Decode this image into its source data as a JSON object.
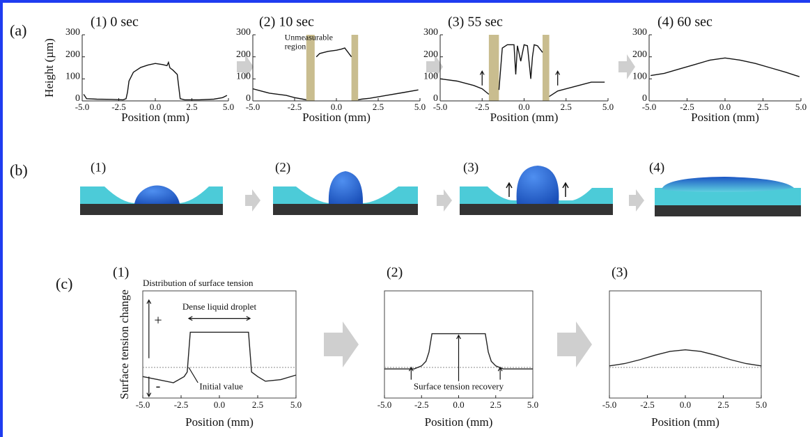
{
  "panel_labels": [
    "(a)",
    "(b)",
    "(c)"
  ],
  "diagram_b": {
    "labels": [
      "(1)",
      "(2)",
      "(3)",
      "(4)"
    ]
  },
  "chart_data": [
    {
      "type": "line",
      "title": "(1) 0 sec",
      "x_label": "Position (mm)",
      "y_label": "Height (µm)",
      "xlim": [
        -5,
        5
      ],
      "ylim": [
        0,
        300
      ],
      "xticks": [
        {
          "value": -5,
          "label": "-5.0"
        },
        {
          "value": -2.5,
          "label": "-2.5"
        },
        {
          "value": 0,
          "label": "0.0"
        },
        {
          "value": 2.5,
          "label": "2.5"
        },
        {
          "value": 5,
          "label": "5.0"
        }
      ],
      "yticks": [
        0,
        100,
        200,
        300
      ],
      "x": [
        -4.9,
        -4.7,
        -4,
        -3,
        -2.2,
        -2.0,
        -1.9,
        -1.8,
        -1.5,
        -1.0,
        -0.5,
        0.0,
        0.5,
        0.8,
        0.9,
        1.0,
        1.2,
        1.5,
        1.7,
        2.0,
        3.0,
        4.0,
        4.6,
        4.9
      ],
      "series": [
        {
          "color": "#111111",
          "values": [
            30,
            10,
            8,
            7,
            5,
            10,
            40,
            90,
            130,
            152,
            163,
            170,
            165,
            160,
            175,
            150,
            140,
            120,
            10,
            5,
            5,
            8,
            15,
            25
          ]
        }
      ]
    },
    {
      "type": "line",
      "title": "(2) 10 sec",
      "x_label": "Position (mm)",
      "xlim": [
        -5,
        5
      ],
      "ylim": [
        0,
        300
      ],
      "xticks": [
        {
          "value": -5,
          "label": "-5.0"
        },
        {
          "value": -2.5,
          "label": "-2.5"
        },
        {
          "value": 0,
          "label": "0.0"
        },
        {
          "value": 2.5,
          "label": "2.5"
        },
        {
          "value": 5,
          "label": "5.0"
        }
      ],
      "yticks": [
        0,
        100,
        200,
        300
      ],
      "shaded_regions": [
        [
          -1.8,
          -1.3
        ],
        [
          0.9,
          1.3
        ]
      ],
      "shaded_color": "#c9bd8f",
      "annotation": [
        "Unmeasurable",
        "region"
      ],
      "x": [
        -5,
        -4.5,
        -4,
        -3,
        -2.5,
        -2,
        -1.8,
        -1.5,
        -1.2,
        -1.0,
        -0.5,
        0,
        0.3,
        0.5,
        0.7,
        0.9,
        1.1,
        1.3,
        1.5,
        2,
        3,
        4,
        4.9
      ],
      "series": [
        {
          "color": "#111111",
          "values": [
            55,
            45,
            35,
            25,
            15,
            8,
            5,
            null,
            200,
            215,
            225,
            230,
            235,
            240,
            220,
            200,
            null,
            5,
            8,
            12,
            25,
            38,
            50
          ]
        }
      ]
    },
    {
      "type": "line",
      "title": "(3) 55 sec",
      "x_label": "Position (mm)",
      "xlim": [
        -5,
        5
      ],
      "ylim": [
        0,
        300
      ],
      "xticks": [
        {
          "value": -5,
          "label": "-5.0"
        },
        {
          "value": -2.5,
          "label": "-2.5"
        },
        {
          "value": 0,
          "label": "0.0"
        },
        {
          "value": 2.5,
          "label": "2.5"
        },
        {
          "value": 5,
          "label": "5.0"
        }
      ],
      "yticks": [
        0,
        100,
        200,
        300
      ],
      "shaded_regions": [
        [
          -2.1,
          -1.5
        ],
        [
          1.1,
          1.5
        ]
      ],
      "shaded_color": "#c9bd8f",
      "x": [
        -5,
        -4,
        -3,
        -2.5,
        -2.1,
        -1.8,
        -1.5,
        -1.3,
        -1.0,
        -0.6,
        -0.5,
        -0.4,
        -0.2,
        0,
        0.2,
        0.4,
        0.5,
        0.6,
        0.8,
        1.1,
        1.3,
        1.5,
        2,
        3,
        4,
        4.8
      ],
      "series": [
        {
          "color": "#111111",
          "values": [
            100,
            90,
            70,
            55,
            30,
            null,
            50,
            240,
            255,
            255,
            120,
            250,
            180,
            255,
            250,
            100,
            200,
            255,
            250,
            220,
            null,
            20,
            45,
            65,
            85,
            85
          ]
        }
      ]
    },
    {
      "type": "line",
      "title": "(4) 60 sec",
      "x_label": "Position (mm)",
      "xlim": [
        -5,
        5
      ],
      "ylim": [
        0,
        300
      ],
      "xticks": [
        {
          "value": -5,
          "label": "-5.0"
        },
        {
          "value": -2.5,
          "label": "-2.5"
        },
        {
          "value": 0,
          "label": "0.0"
        },
        {
          "value": 2.5,
          "label": "2.5"
        },
        {
          "value": 5,
          "label": "5.0"
        }
      ],
      "yticks": [
        0,
        100,
        200,
        300
      ],
      "x": [
        -4.9,
        -4,
        -3,
        -2,
        -1,
        0,
        1,
        2,
        3,
        4,
        4.9
      ],
      "series": [
        {
          "color": "#111111",
          "values": [
            115,
            125,
            145,
            165,
            185,
            195,
            185,
            170,
            150,
            130,
            110
          ]
        }
      ]
    },
    {
      "type": "line",
      "title": "(1)",
      "subtitle": "Distribution of surface tension",
      "x_label": "Position (mm)",
      "y_label": "Surface tension change",
      "xlim": [
        -5,
        5
      ],
      "ylim": [
        -2,
        5
      ],
      "baseline": 0,
      "xticks": [
        {
          "value": -5,
          "label": "-5.0"
        },
        {
          "value": -2.5,
          "label": "-2.5"
        },
        {
          "value": 0,
          "label": "0.0"
        },
        {
          "value": 2.5,
          "label": "2.5"
        },
        {
          "value": 5,
          "label": "5.0"
        }
      ],
      "annotations": [
        "Dense liquid droplet",
        "Initial value",
        "+",
        "-"
      ],
      "x": [
        -5,
        -4,
        -3,
        -2.3,
        -2.1,
        -2.0,
        -1.9,
        1.9,
        2.0,
        2.1,
        2.5,
        3,
        4,
        5
      ],
      "series": [
        {
          "color": "#222222",
          "values": [
            -0.6,
            -0.8,
            -1.0,
            -0.6,
            -0.3,
            1.0,
            2.3,
            2.3,
            1.0,
            -0.3,
            -0.6,
            -0.9,
            -0.8,
            -0.5
          ]
        }
      ]
    },
    {
      "type": "line",
      "title": "(2)",
      "x_label": "Position (mm)",
      "xlim": [
        -5,
        5
      ],
      "ylim": [
        -2,
        5
      ],
      "baseline": 0,
      "xticks": [
        {
          "value": -5,
          "label": "-5.0"
        },
        {
          "value": -2.5,
          "label": "-2.5"
        },
        {
          "value": 0,
          "label": "0.0"
        },
        {
          "value": 2.5,
          "label": "2.5"
        },
        {
          "value": 5,
          "label": "5.0"
        }
      ],
      "annotations": [
        "Surface tension recovery"
      ],
      "x": [
        -5,
        -3,
        -2.5,
        -2.2,
        -2,
        -1.8,
        1.8,
        2,
        2.2,
        2.5,
        3,
        5
      ],
      "series": [
        {
          "color": "#222222",
          "values": [
            -0.1,
            -0.1,
            0.1,
            0.4,
            1.0,
            2.2,
            2.2,
            1.0,
            0.4,
            0.1,
            -0.1,
            -0.1
          ]
        }
      ]
    },
    {
      "type": "line",
      "title": "(3)",
      "x_label": "Position (mm)",
      "xlim": [
        -5,
        5
      ],
      "ylim": [
        -2,
        5
      ],
      "baseline": 0,
      "xticks": [
        {
          "value": -5,
          "label": "-5.0"
        },
        {
          "value": -2.5,
          "label": "-2.5"
        },
        {
          "value": 0,
          "label": "0.0"
        },
        {
          "value": 2.5,
          "label": "2.5"
        },
        {
          "value": 5,
          "label": "5.0"
        }
      ],
      "x": [
        -5,
        -4,
        -3,
        -2,
        -1,
        0,
        1,
        2,
        3,
        4,
        5
      ],
      "series": [
        {
          "color": "#222222",
          "values": [
            0.1,
            0.25,
            0.5,
            0.8,
            1.05,
            1.15,
            1.05,
            0.8,
            0.5,
            0.25,
            0.1
          ]
        }
      ]
    }
  ]
}
